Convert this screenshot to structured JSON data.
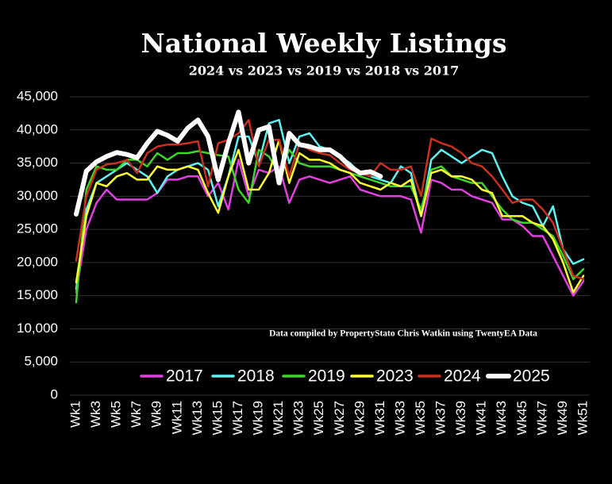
{
  "chart_data": {
    "type": "line",
    "title": "National Weekly Listings",
    "subtitle": "2024 vs 2023 vs 2019 vs 2018 vs 2017",
    "annotation": "Data compiled by PropertyStato Chris Watkin using TwentyEA Data",
    "categories": [
      "Wk1",
      null,
      "Wk3",
      null,
      "Wk5",
      null,
      "Wk7",
      null,
      "Wk9",
      null,
      "Wk11",
      null,
      "Wk13",
      null,
      "Wk15",
      null,
      "Wk17",
      null,
      "Wk19",
      null,
      "Wk21",
      null,
      "Wk23",
      null,
      "Wk25",
      null,
      "Wk27",
      null,
      "Wk29",
      null,
      "Wk31",
      null,
      "Wk33",
      null,
      "Wk35",
      null,
      "Wk37",
      null,
      "Wk39",
      null,
      "Wk41",
      null,
      "Wk43",
      null,
      "Wk45",
      null,
      "Wk47",
      null,
      "Wk49",
      null,
      "Wk51"
    ],
    "ylim": [
      0,
      45000
    ],
    "yticks": [
      0,
      {
        "value": 5000,
        "label": "5,000"
      },
      {
        "value": 10000,
        "label": "10,000"
      },
      {
        "value": 15000,
        "label": "15,000"
      },
      {
        "value": 20000,
        "label": "20,000"
      },
      {
        "value": 25000,
        "label": "25,000"
      },
      {
        "value": 30000,
        "label": "30,000"
      },
      {
        "value": 35000,
        "label": "35,000"
      },
      {
        "value": 40000,
        "label": "40,000"
      },
      {
        "value": 45000,
        "label": "45,000"
      }
    ],
    "grid": true,
    "legend_position": "bottom",
    "series": [
      {
        "name": "2017",
        "color": "#e040e0",
        "values": [
          15500,
          25000,
          29000,
          31000,
          29500,
          29500,
          29500,
          29500,
          30500,
          32500,
          32500,
          33000,
          33000,
          30000,
          32000,
          28000,
          35500,
          30000,
          34000,
          33500,
          34500,
          29000,
          32500,
          33000,
          32500,
          32000,
          32500,
          33000,
          31000,
          30500,
          30000,
          30000,
          30000,
          29500,
          24500,
          32500,
          32000,
          31000,
          31000,
          30000,
          29500,
          29000,
          26500,
          26500,
          25500,
          24000,
          24000,
          21000,
          18000,
          15000,
          17200
        ]
      },
      {
        "name": "2018",
        "color": "#5ff0f0",
        "values": [
          16000,
          28000,
          32000,
          33000,
          34000,
          35000,
          34000,
          33000,
          30500,
          33000,
          34000,
          34500,
          35000,
          34000,
          28500,
          33000,
          39000,
          39000,
          35000,
          41000,
          41500,
          35000,
          39000,
          39500,
          37500,
          37000,
          36000,
          35000,
          33500,
          33000,
          32500,
          32000,
          34500,
          33500,
          27000,
          35500,
          37000,
          36000,
          35000,
          36000,
          37000,
          36500,
          33000,
          30000,
          29000,
          28500,
          25500,
          28500,
          22000,
          19800,
          20500
        ]
      },
      {
        "name": "2019",
        "color": "#3fd42a",
        "values": [
          14000,
          31000,
          34500,
          34000,
          34000,
          35500,
          35500,
          34500,
          36500,
          35500,
          36500,
          36500,
          36800,
          36500,
          36200,
          36000,
          31000,
          29000,
          37000,
          36000,
          33500,
          37000,
          35000,
          34500,
          34500,
          34500,
          34000,
          33500,
          33000,
          32500,
          32000,
          31500,
          31500,
          31500,
          28000,
          34000,
          34500,
          33000,
          32500,
          32000,
          32000,
          30000,
          28000,
          26500,
          26000,
          26000,
          25000,
          24000,
          21000,
          17500,
          19000
        ]
      },
      {
        "name": "2023",
        "color": "#ffff33",
        "values": [
          17000,
          27000,
          32000,
          31500,
          33000,
          33500,
          32500,
          32500,
          34500,
          34000,
          34000,
          34500,
          34000,
          30500,
          27500,
          33000,
          37000,
          31000,
          31000,
          33500,
          38500,
          32000,
          36500,
          35500,
          35500,
          35000,
          34000,
          33500,
          32000,
          31500,
          31000,
          32000,
          31500,
          32500,
          27000,
          33500,
          34000,
          33000,
          33000,
          32500,
          31000,
          30500,
          27000,
          27000,
          27000,
          26000,
          25500,
          23500,
          20000,
          15500,
          18000
        ]
      },
      {
        "name": "2024",
        "color": "#c9301e",
        "values": [
          20300,
          30000,
          34000,
          34800,
          35000,
          35500,
          33500,
          36500,
          37500,
          37800,
          37800,
          38000,
          38300,
          31500,
          38000,
          38500,
          39500,
          41500,
          34500,
          38500,
          38500,
          33000,
          38000,
          37000,
          36500,
          36200,
          35000,
          34000,
          33500,
          33000,
          35000,
          34000,
          34000,
          34500,
          30000,
          38700,
          38000,
          37500,
          36500,
          35000,
          34500,
          33000,
          31000,
          29000,
          29500,
          29500,
          28000,
          26000,
          22000,
          18000,
          17500
        ]
      },
      {
        "name": "2025",
        "color": "#ffffff",
        "width": 6,
        "values": [
          27300,
          33800,
          35200,
          36000,
          36600,
          36300,
          35800,
          38000,
          39800,
          39200,
          38300,
          40300,
          41500,
          39000,
          32500,
          38000,
          42700,
          35000,
          40000,
          40500,
          32000,
          39500,
          37800,
          37500,
          37000,
          37000,
          36000,
          34500,
          33500,
          33700,
          33000,
          null,
          null,
          null,
          null,
          null,
          null,
          null,
          null,
          null,
          null,
          null,
          null,
          null,
          null,
          null,
          null,
          null,
          null,
          null,
          null
        ]
      }
    ]
  }
}
